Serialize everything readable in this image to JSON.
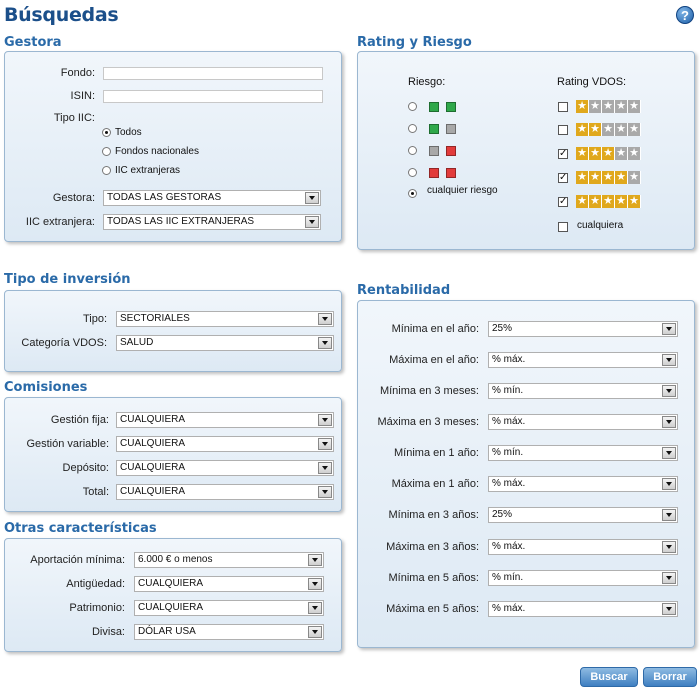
{
  "page": {
    "title": "Búsquedas",
    "help": "?"
  },
  "gestora": {
    "title": "Gestora",
    "fondo_label": "Fondo:",
    "isin_label": "ISIN:",
    "tipo_label": "Tipo IIC:",
    "tipo_options": [
      "Todos",
      "Fondos nacionales",
      "IIC extranjeras"
    ],
    "tipo_selected": 0,
    "gestora_label": "Gestora:",
    "gestora_value": "TODAS LAS GESTORAS",
    "iic_label": "IIC extranjera:",
    "iic_value": "TODAS LAS IIC EXTRANJERAS"
  },
  "rating": {
    "title": "Rating y Riesgo",
    "riesgo_label": "Riesgo:",
    "rating_label": "Rating VDOS:",
    "riesgo_options": [
      {
        "colors": [
          "#2fa84a",
          "#2fa84a"
        ]
      },
      {
        "colors": [
          "#2fa84a",
          "#a8a8a8"
        ]
      },
      {
        "colors": [
          "#a8a8a8",
          "#e23b3b"
        ]
      },
      {
        "colors": [
          "#e23b3b",
          "#e23b3b"
        ]
      }
    ],
    "riesgo_any": "cualquier riesgo",
    "riesgo_selected": 4,
    "rating_rows": [
      {
        "stars": 1,
        "checked": false
      },
      {
        "stars": 2,
        "checked": false
      },
      {
        "stars": 3,
        "checked": true
      },
      {
        "stars": 4,
        "checked": true
      },
      {
        "stars": 5,
        "checked": true
      }
    ],
    "rating_any": "cualquiera",
    "rating_any_checked": false,
    "star_on": "#e0a81c",
    "star_off": "#a9a9a9"
  },
  "tipo_inversion": {
    "title": "Tipo de inversión",
    "tipo_label": "Tipo:",
    "tipo_value": "SECTORIALES",
    "categoria_label": "Categoría VDOS:",
    "categoria_value": "SALUD"
  },
  "comisiones": {
    "title": "Comisiones",
    "rows": [
      {
        "label": "Gestión fija:",
        "value": "CUALQUIERA"
      },
      {
        "label": "Gestión variable:",
        "value": "CUALQUIERA"
      },
      {
        "label": "Depósito:",
        "value": "CUALQUIERA"
      },
      {
        "label": "Total:",
        "value": "CUALQUIERA"
      }
    ]
  },
  "otras": {
    "title": "Otras características",
    "rows": [
      {
        "label": "Aportación mínima:",
        "value": "6.000 € o menos"
      },
      {
        "label": "Antigüedad:",
        "value": "CUALQUIERA"
      },
      {
        "label": "Patrimonio:",
        "value": "CUALQUIERA"
      },
      {
        "label": "Divisa:",
        "value": "DÓLAR USA"
      }
    ]
  },
  "rentabilidad": {
    "title": "Rentabilidad",
    "rows": [
      {
        "label": "Mínima en el año:",
        "value": "25%"
      },
      {
        "label": "Máxima en el año:",
        "value": "% máx."
      },
      {
        "label": "Mínima en 3 meses:",
        "value": "% mín."
      },
      {
        "label": "Máxima en 3 meses:",
        "value": "% máx."
      },
      {
        "label": "Mínima en 1 año:",
        "value": "% mín."
      },
      {
        "label": "Máxima en 1 año:",
        "value": "% máx."
      },
      {
        "label": "Mínima en 3 años:",
        "value": "25%"
      },
      {
        "label": "Máxima en 3 años:",
        "value": "% máx."
      },
      {
        "label": "Mínima en 5 años:",
        "value": "% mín."
      },
      {
        "label": "Máxima en 5 años:",
        "value": "% máx."
      }
    ]
  },
  "buttons": {
    "buscar": "Buscar",
    "borrar": "Borrar"
  }
}
